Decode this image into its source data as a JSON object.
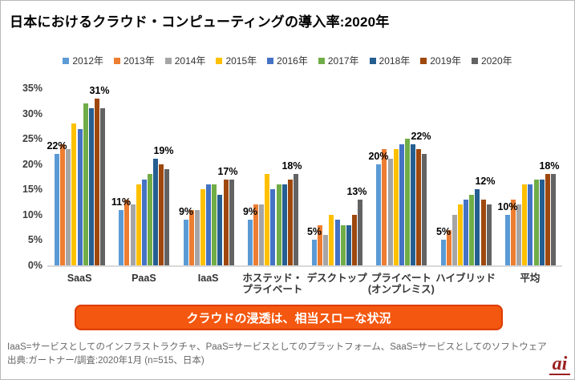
{
  "page": {
    "title": "日本におけるクラウド・コンピューティングの導入率:2020年",
    "banner_text": "クラウドの浸透は、相当スローな状況",
    "footnote_line1": "IaaS=サービスとしてのインフラストラクチャ、PaaS=サービスとしてのプラットフォーム、SaaS=サービスとしてのソフトウェア",
    "footnote_line2": "出典:ガートナー/調査:2020年1月 (n=515、日本)",
    "logo_text": "ai",
    "banner_bg_color": "#f4570f",
    "banner_border_color": "#dd3d00",
    "logo_color": "#9a2020"
  },
  "chart_data": {
    "type": "bar",
    "title": "日本におけるクラウド・コンピューティングの導入率:2020年",
    "xlabel": "",
    "ylabel": "",
    "ylim": [
      0,
      35
    ],
    "yticks": [
      0,
      5,
      10,
      15,
      20,
      25,
      30,
      35
    ],
    "ytick_suffix": "%",
    "grid": false,
    "legend_position": "top-center",
    "categories": [
      {
        "lines": [
          "SaaS"
        ]
      },
      {
        "lines": [
          "PaaS"
        ]
      },
      {
        "lines": [
          "IaaS"
        ]
      },
      {
        "lines": [
          "ホステッド・",
          "プライベート"
        ]
      },
      {
        "lines": [
          "デスクトップ"
        ]
      },
      {
        "lines": [
          "プライベート",
          "(オンプレミス)"
        ]
      },
      {
        "lines": [
          "ハイブリッド"
        ]
      },
      {
        "lines": [
          "平均"
        ]
      }
    ],
    "series": [
      {
        "name": "2012年",
        "color": "#5B9BD5",
        "values": [
          22,
          11,
          9,
          9,
          5,
          20,
          5,
          10
        ]
      },
      {
        "name": "2013年",
        "color": "#ED7D31",
        "values": [
          24,
          13,
          11,
          12,
          8,
          23,
          7,
          13
        ]
      },
      {
        "name": "2014年",
        "color": "#A5A5A5",
        "values": [
          23,
          12,
          11,
          12,
          6,
          21,
          10,
          12
        ]
      },
      {
        "name": "2015年",
        "color": "#FFC000",
        "values": [
          28,
          16,
          15,
          18,
          10,
          23,
          12,
          16
        ]
      },
      {
        "name": "2016年",
        "color": "#4472C4",
        "values": [
          27,
          17,
          16,
          15,
          9,
          24,
          13,
          16
        ]
      },
      {
        "name": "2017年",
        "color": "#70AD47",
        "values": [
          32,
          18,
          16,
          16,
          8,
          25,
          14,
          17
        ]
      },
      {
        "name": "2018年",
        "color": "#255E91",
        "values": [
          31,
          21,
          14,
          16,
          8,
          24,
          15,
          17
        ]
      },
      {
        "name": "2019年",
        "color": "#9E480E",
        "values": [
          33,
          20,
          17,
          17,
          10,
          23,
          13,
          18
        ]
      },
      {
        "name": "2020年",
        "color": "#636363",
        "values": [
          31,
          19,
          17,
          18,
          13,
          22,
          12,
          18
        ]
      }
    ],
    "annotations": [
      {
        "first": "22%",
        "last": "31%"
      },
      {
        "first": "11%",
        "last": "19%"
      },
      {
        "first": "9%",
        "last": "17%"
      },
      {
        "first": "9%",
        "last": "18%"
      },
      {
        "first": "5%",
        "last": "13%"
      },
      {
        "first": "20%",
        "last": "22%"
      },
      {
        "first": "5%",
        "last": "12%"
      },
      {
        "first": "10%",
        "last": "18%"
      }
    ],
    "annotation_note": "first = 2012年 value label, last = 2020年 value label"
  }
}
